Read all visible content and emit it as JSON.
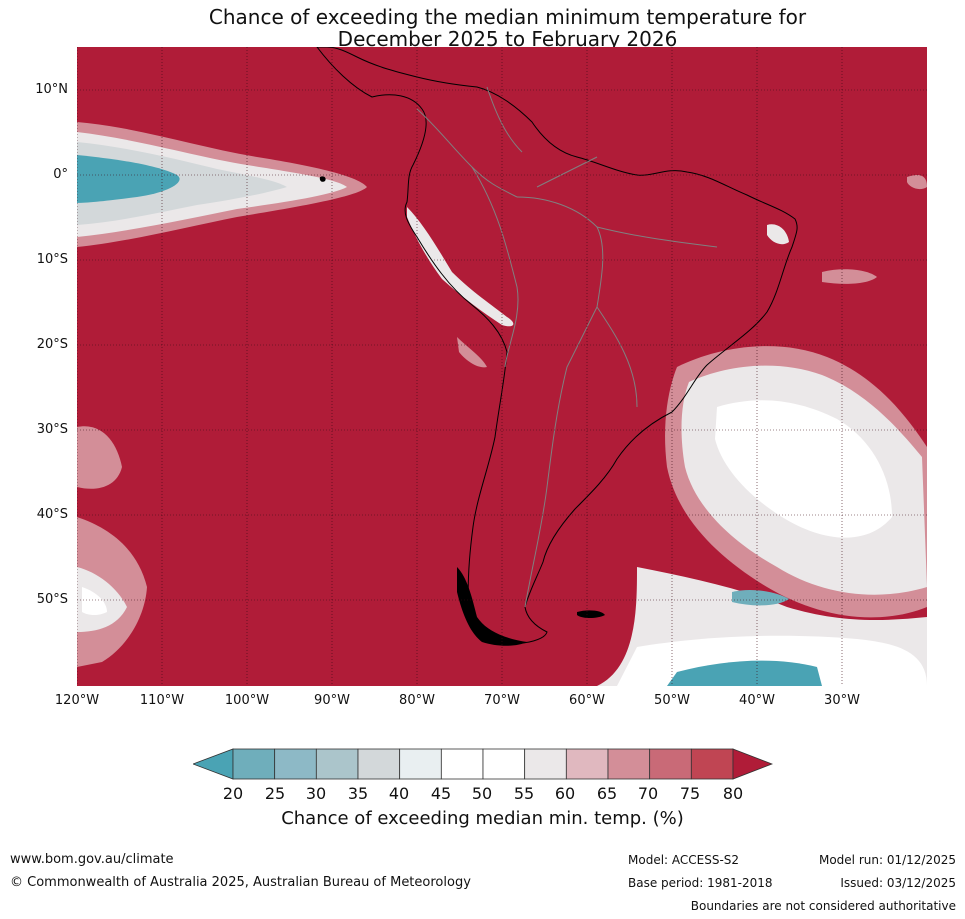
{
  "title": {
    "line1": "Chance of exceeding the median minimum temperature for",
    "line2": "December 2025 to February 2026"
  },
  "map": {
    "region": "South America",
    "lat_labels": [
      "10°N",
      "0°",
      "10°S",
      "20°S",
      "30°S",
      "40°S",
      "50°S"
    ],
    "lon_labels": [
      "120°W",
      "110°W",
      "100°W",
      "90°W",
      "80°W",
      "70°W",
      "60°W",
      "50°W",
      "40°W",
      "30°W"
    ],
    "colors": {
      "ocean_bg": "#b01c38",
      "coast": "#000000",
      "borders": "#808080",
      "grid": "#3a0a14"
    }
  },
  "colorbar": {
    "ticks": [
      "20",
      "25",
      "30",
      "35",
      "40",
      "45",
      "50",
      "55",
      "60",
      "65",
      "70",
      "75",
      "80"
    ],
    "colors": [
      "#4aa3b4",
      "#6faebb",
      "#8db9c6",
      "#abc5cb",
      "#d3d8da",
      "#e9eff1",
      "#ffffff",
      "#ffffff",
      "#ebe8e9",
      "#e0b8bf",
      "#d38e98",
      "#c96a77",
      "#c04553",
      "#b01c38"
    ],
    "label": "Chance of exceeding median min. temp. (%)"
  },
  "footer": {
    "url": "www.bom.gov.au/climate",
    "copyright": "© Commonwealth of Australia 2025, Australian Bureau of Meteorology",
    "model": "Model: ACCESS-S2",
    "base_period": "Base period: 1981-2018",
    "model_run": "Model run: 01/12/2025",
    "issued": "Issued: 03/12/2025",
    "disclaimer": "Boundaries are not considered authoritative"
  }
}
